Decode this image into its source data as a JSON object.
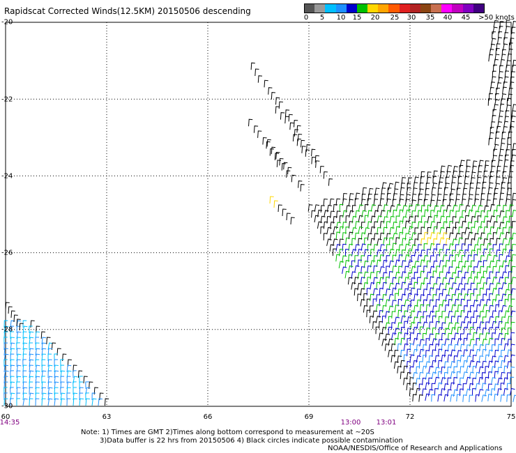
{
  "title": "Rapidscat Corrected Winds(12.5KM) 20150506 descending",
  "colorbar": {
    "label_text": ">50 knots",
    "ticks": [
      "0",
      "5",
      "10",
      "15",
      "20",
      "25",
      "30",
      "35",
      "40",
      "45"
    ],
    "colors": [
      "#555555",
      "#999999",
      "#00bfff",
      "#1e90ff",
      "#0000cd",
      "#00c000",
      "#ffd700",
      "#ffa500",
      "#ff5a00",
      "#e02020",
      "#b22222",
      "#8b4513",
      "#c87050",
      "#ff00ff",
      "#c000c0",
      "#8000c0",
      "#400080"
    ]
  },
  "map": {
    "lat_labels": [
      "-20",
      "-22",
      "-24",
      "-26",
      "-28",
      "-30"
    ],
    "lon_labels": [
      "60",
      "63",
      "66",
      "69",
      "72",
      "75"
    ],
    "lat_range": [
      -30,
      -20
    ],
    "lon_range": [
      60,
      75
    ],
    "grid_style": "dotted",
    "time_labels": [
      {
        "text": "14:35",
        "lon": 60.2
      },
      {
        "text": "13:00",
        "lon": 70.2
      },
      {
        "text": "13:01",
        "lon": 71.2
      }
    ],
    "wind_colors_legend": {
      "calm": "#000000",
      "blue": "#0000cd",
      "light_blue": "#1e90ff",
      "cyan": "#00bfff",
      "green": "#00c000",
      "yellow": "#ffd700"
    }
  },
  "notes": {
    "line1": "Note: 1) Times are GMT 2)Times along bottom correspond to measurement at ~20S",
    "line2": "3)Data buffer is 22 hrs from 20150506 4) Black circles indicate possible contamination",
    "line3": "NOAA/NESDIS/Office of Research and Applications"
  }
}
